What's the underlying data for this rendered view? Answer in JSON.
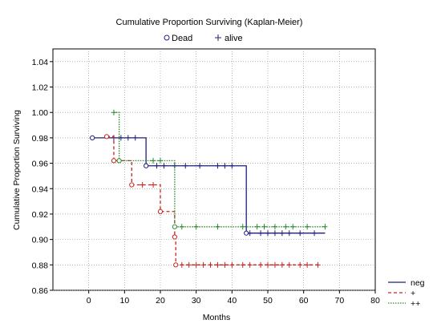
{
  "chart_data": {
    "type": "line",
    "title": "Cumulative Proportion Surviving (Kaplan-Meier)",
    "xlabel": "Months",
    "ylabel": "Cumulative Proportion Surviving",
    "xlim": [
      -10,
      80
    ],
    "ylim": [
      0.86,
      1.05
    ],
    "xticks": [
      0,
      10,
      20,
      30,
      40,
      50,
      60,
      70,
      80
    ],
    "yticks": [
      0.86,
      0.88,
      0.9,
      0.92,
      0.94,
      0.96,
      0.98,
      1.0,
      1.02,
      1.04
    ],
    "grid": true,
    "marker_legend": {
      "dead_label": "Dead",
      "alive_label": "alive"
    },
    "legend_position": "bottom-right",
    "series": [
      {
        "name": "neg",
        "color": "#1f1f7a",
        "dash": "solid",
        "steps": [
          [
            1,
            0.98
          ],
          [
            16,
            0.958
          ],
          [
            44,
            0.905
          ],
          [
            66,
            0.905
          ]
        ],
        "dead": [
          1,
          16,
          44
        ],
        "alive": [
          7,
          9,
          11,
          13,
          19,
          21,
          24,
          27,
          31,
          36,
          38,
          40,
          45,
          48,
          50,
          52,
          54,
          56,
          59,
          63
        ]
      },
      {
        "name": "+",
        "color": "#cc2222",
        "dash": "dashed",
        "steps": [
          [
            5,
            0.981
          ],
          [
            7,
            0.962
          ],
          [
            12,
            0.943
          ],
          [
            20,
            0.922
          ],
          [
            24,
            0.902
          ],
          [
            24.3,
            0.88
          ],
          [
            64,
            0.88
          ]
        ],
        "dead": [
          5,
          7,
          12,
          20,
          24,
          24.3
        ],
        "alive": [
          15,
          18,
          26,
          28,
          30,
          32,
          34,
          36,
          38,
          40,
          43,
          45,
          48,
          50,
          52,
          54,
          56,
          59,
          61,
          64
        ]
      },
      {
        "name": "++",
        "color": "#2a8a2a",
        "dash": "dotted",
        "steps": [
          [
            7,
            1.0
          ],
          [
            8.5,
            0.962
          ],
          [
            24,
            0.91
          ],
          [
            66,
            0.91
          ]
        ],
        "dead": [
          8.5,
          24
        ],
        "alive": [
          7,
          18,
          20,
          26,
          30,
          36,
          43,
          47,
          49,
          52,
          55,
          57,
          61,
          66
        ]
      }
    ]
  }
}
